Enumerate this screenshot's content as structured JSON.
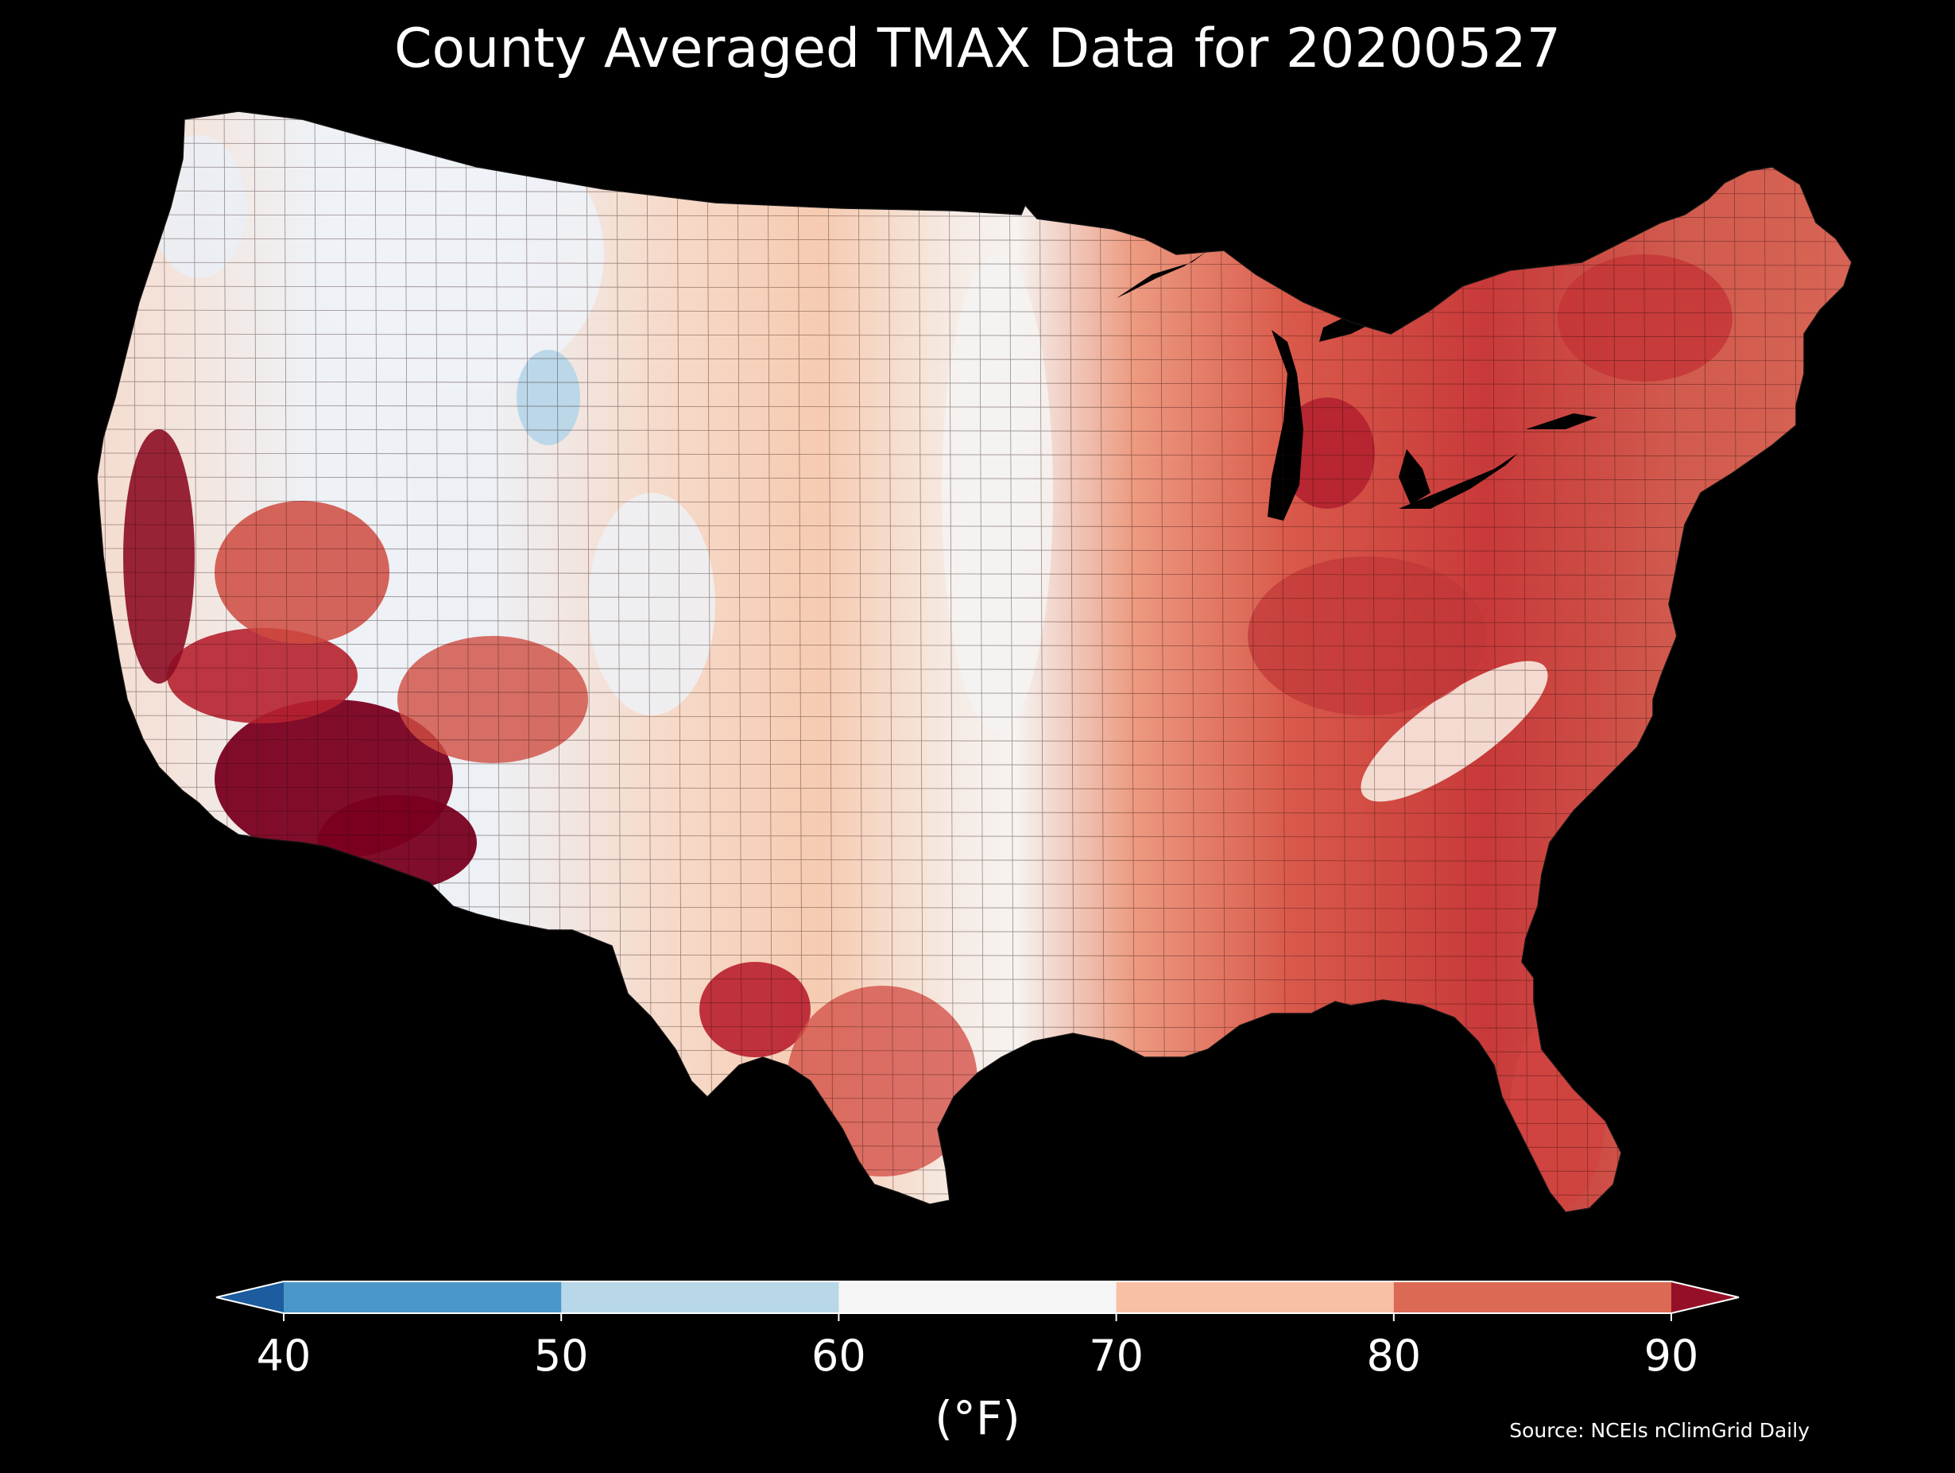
{
  "title": "County Averaged TMAX Data for 20200527",
  "source": "Source: NCEIs nClimGrid Daily",
  "colorbar": {
    "units": "(°F)",
    "ticks": [
      "40",
      "50",
      "60",
      "70",
      "80",
      "90"
    ],
    "bins": [
      {
        "range": "<40",
        "color": "#1c5c9f"
      },
      {
        "range": "40-50",
        "color": "#4b97c9"
      },
      {
        "range": "50-60",
        "color": "#b8d8ea"
      },
      {
        "range": "60-70",
        "color": "#f5f5f5"
      },
      {
        "range": "70-80",
        "color": "#f8c1a5"
      },
      {
        "range": "80-90",
        "color": "#dc6954"
      },
      {
        "range": ">90",
        "color": "#960f28"
      }
    ],
    "extend": "both"
  },
  "map": {
    "region": "Contiguous United States",
    "units": "county",
    "variable": "TMAX",
    "date": "20200527",
    "background": "#000000",
    "border_color": "#1a0a05"
  }
}
